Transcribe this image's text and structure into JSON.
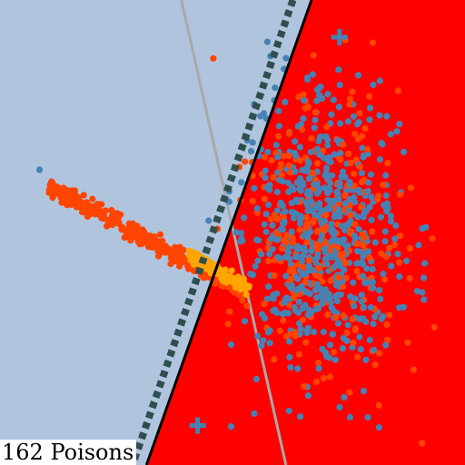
{
  "caption": "162 Poisons",
  "chart_data": {
    "type": "scatter",
    "title": "",
    "xlabel": "",
    "ylabel": "",
    "xlim": [
      -10,
      10
    ],
    "ylim": [
      -10,
      10
    ],
    "grid": false,
    "legend": "none",
    "colors": {
      "region_negative": "#b0c4de",
      "region_positive": "#ff0000",
      "class_blue": "#4682b4",
      "class_orange": "#ff4500",
      "class_poison": "#ffa500",
      "decision_boundary": "#000000",
      "margin_line": "#2f4f4f",
      "reference_line": "#a9a9a9",
      "centroid_marker": "#4682b4"
    },
    "decision_boundary": {
      "x1": 3.4,
      "y1": 10,
      "x2": -3.7,
      "y2": -10
    },
    "margin_line": {
      "x1": 2.6,
      "y1": 10,
      "x2": -4.3,
      "y2": -10
    },
    "reference_line": {
      "x1": -2.2,
      "y1": 10,
      "x2": 2.3,
      "y2": -10
    },
    "centroids": [
      {
        "x": 4.6,
        "y": 8.4
      },
      {
        "x": -1.5,
        "y": -8.3
      }
    ],
    "series": [
      {
        "name": "",
        "cloud": {
          "cx": 3.8,
          "cy": 0.0,
          "sx": 1.7,
          "sy": 3.0,
          "n": 900
        }
      },
      {
        "name": "",
        "stripe": {
          "x0": -7.9,
          "y0": 2.0,
          "x1": 0.4,
          "y1": -2.5,
          "n": 380,
          "width": 0.18
        }
      },
      {
        "name": "",
        "stripe": {
          "x0": -1.8,
          "y0": -1.0,
          "x1": 0.6,
          "y1": -2.4,
          "n": 162,
          "width": 0.15
        }
      }
    ],
    "outliers": [
      {
        "x": -8.3,
        "y": 2.7
      },
      {
        "x": 1.5,
        "y": 8.2
      },
      {
        "x": 2.3,
        "y": 7.5
      },
      {
        "x": 1.2,
        "y": 5.0
      },
      {
        "x": 0.8,
        "y": 3.5
      }
    ]
  }
}
